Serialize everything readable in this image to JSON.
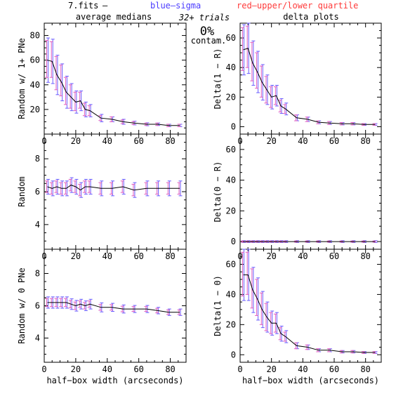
{
  "header": {
    "file": "7.fits",
    "dash": "–",
    "blue_label": "blue–sigma",
    "red_label": "red–upper/lower quartile",
    "blue_color": "#4b3cff",
    "red_color": "#ff3a3a",
    "left_title": "average medians",
    "right_title": "delta plots",
    "trials": "32+ trials",
    "contam_pct": "0%",
    "contam_word": "contam."
  },
  "colors": {
    "line": "#000000",
    "sigma": "#6a5cff",
    "quartile": "#e060c0"
  },
  "chart_data": [
    {
      "type": "line",
      "id": "p1",
      "ylabel": "Random w/ 1+ PNe",
      "xlabel": "",
      "xlim": [
        0,
        90
      ],
      "ylim": [
        0,
        90
      ],
      "xticks": [
        0,
        20,
        40,
        60,
        80
      ],
      "yticks": [
        20,
        40,
        60,
        80
      ],
      "x": [
        2,
        5,
        8,
        11,
        14,
        17,
        20,
        23,
        26,
        29,
        36,
        43,
        50,
        57,
        65,
        72,
        79,
        86
      ],
      "y": [
        60,
        59,
        48,
        42,
        34,
        30,
        26,
        27,
        20,
        19,
        13,
        12,
        10,
        9,
        8,
        8,
        7,
        7
      ],
      "sigma": [
        18,
        18,
        16,
        15,
        13,
        11,
        9,
        8,
        6,
        5,
        3,
        2,
        2,
        1.5,
        1.2,
        1,
        1,
        1
      ],
      "q_low": [
        14,
        13,
        12,
        11,
        10,
        9,
        7,
        6,
        5,
        4,
        2,
        2,
        1.5,
        1.2,
        1,
        1,
        1,
        1
      ],
      "q_high": [
        16,
        16,
        15,
        14,
        12,
        10,
        8,
        7,
        5,
        4,
        2,
        2,
        1.5,
        1.2,
        1,
        1,
        1,
        1
      ]
    },
    {
      "type": "line",
      "id": "p2",
      "ylabel": "Delta(1 − R)",
      "xlabel": "",
      "xlim": [
        0,
        90
      ],
      "ylim": [
        -5,
        70
      ],
      "xticks": [
        0,
        20,
        40,
        60,
        80
      ],
      "yticks": [
        0,
        20,
        40,
        60
      ],
      "x": [
        2,
        5,
        8,
        11,
        14,
        17,
        20,
        23,
        26,
        29,
        36,
        43,
        50,
        57,
        65,
        72,
        79,
        86
      ],
      "y": [
        52,
        53,
        43,
        37,
        30,
        25,
        20,
        21,
        14,
        12,
        6,
        5,
        3,
        2.5,
        2,
        2,
        1.5,
        1.5
      ],
      "sigma": [
        17,
        17,
        15,
        14,
        12,
        10,
        8,
        7,
        5,
        4,
        2,
        1.5,
        1,
        1,
        0.8,
        0.8,
        0.6,
        0.6
      ],
      "q_low": [
        14,
        13,
        12,
        11,
        10,
        9,
        7,
        6,
        4,
        3,
        2,
        1.5,
        1,
        1,
        0.8,
        0.8,
        0.6,
        0.6
      ],
      "q_high": [
        15,
        15,
        14,
        13,
        11,
        9,
        7,
        6,
        4,
        3,
        2,
        1.5,
        1,
        1,
        0.8,
        0.8,
        0.6,
        0.6
      ]
    },
    {
      "type": "line",
      "id": "p3",
      "ylabel": "Random",
      "xlabel": "",
      "xlim": [
        0,
        90
      ],
      "ylim": [
        2.5,
        9.5
      ],
      "xticks": [
        0,
        20,
        40,
        60,
        80
      ],
      "yticks": [
        4,
        6,
        8
      ],
      "x": [
        2,
        5,
        8,
        11,
        14,
        17,
        20,
        23,
        26,
        29,
        36,
        43,
        50,
        57,
        65,
        72,
        79,
        86
      ],
      "y": [
        6.3,
        6.2,
        6.3,
        6.2,
        6.2,
        6.4,
        6.3,
        6.1,
        6.3,
        6.3,
        6.2,
        6.2,
        6.3,
        6.1,
        6.2,
        6.2,
        6.2,
        6.2
      ],
      "sigma": [
        0.45,
        0.45,
        0.45,
        0.45,
        0.45,
        0.45,
        0.45,
        0.45,
        0.45,
        0.45,
        0.45,
        0.45,
        0.45,
        0.45,
        0.45,
        0.45,
        0.45,
        0.45
      ],
      "q_low": [
        0.35,
        0.35,
        0.35,
        0.35,
        0.35,
        0.35,
        0.35,
        0.35,
        0.35,
        0.35,
        0.35,
        0.35,
        0.35,
        0.35,
        0.35,
        0.35,
        0.35,
        0.35
      ],
      "q_high": [
        0.35,
        0.35,
        0.35,
        0.35,
        0.35,
        0.35,
        0.35,
        0.35,
        0.35,
        0.35,
        0.35,
        0.35,
        0.35,
        0.35,
        0.35,
        0.35,
        0.35,
        0.35
      ]
    },
    {
      "type": "line",
      "id": "p4",
      "ylabel": "Delta(0 − R)",
      "xlabel": "",
      "xlim": [
        0,
        90
      ],
      "ylim": [
        -5,
        70
      ],
      "xticks": [
        0,
        20,
        40,
        60,
        80
      ],
      "yticks": [
        0,
        20,
        40,
        60
      ],
      "x": [
        2,
        5,
        8,
        11,
        14,
        17,
        20,
        23,
        26,
        29,
        36,
        43,
        50,
        57,
        65,
        72,
        79,
        86
      ],
      "y": [
        0,
        0,
        0,
        0,
        0,
        0,
        0,
        0,
        0,
        0,
        0,
        0,
        0,
        0,
        0,
        0,
        0,
        0
      ],
      "sigma": [
        0.6,
        0.6,
        0.6,
        0.6,
        0.6,
        0.6,
        0.6,
        0.6,
        0.6,
        0.6,
        0.6,
        0.6,
        0.6,
        0.6,
        0.6,
        0.6,
        0.6,
        0.6
      ],
      "q_low": [
        0.4,
        0.4,
        0.4,
        0.4,
        0.4,
        0.4,
        0.4,
        0.4,
        0.4,
        0.4,
        0.4,
        0.4,
        0.4,
        0.4,
        0.4,
        0.4,
        0.4,
        0.4
      ],
      "q_high": [
        0.4,
        0.4,
        0.4,
        0.4,
        0.4,
        0.4,
        0.4,
        0.4,
        0.4,
        0.4,
        0.4,
        0.4,
        0.4,
        0.4,
        0.4,
        0.4,
        0.4,
        0.4
      ]
    },
    {
      "type": "line",
      "id": "p5",
      "ylabel": "Random w/ 0 PNe",
      "xlabel": "half−box width (arcseconds)",
      "xlim": [
        0,
        90
      ],
      "ylim": [
        2.5,
        9.5
      ],
      "xticks": [
        0,
        20,
        40,
        60,
        80
      ],
      "yticks": [
        4,
        6,
        8
      ],
      "x": [
        2,
        5,
        8,
        11,
        14,
        17,
        20,
        23,
        26,
        29,
        36,
        43,
        50,
        57,
        65,
        72,
        79,
        86
      ],
      "y": [
        6.2,
        6.2,
        6.2,
        6.2,
        6.2,
        6.1,
        6.0,
        6.1,
        6.0,
        6.1,
        5.9,
        5.9,
        5.8,
        5.8,
        5.8,
        5.7,
        5.6,
        5.6
      ],
      "sigma": [
        0.35,
        0.35,
        0.35,
        0.35,
        0.35,
        0.33,
        0.33,
        0.3,
        0.3,
        0.3,
        0.28,
        0.25,
        0.25,
        0.22,
        0.22,
        0.2,
        0.2,
        0.2
      ],
      "q_low": [
        0.25,
        0.25,
        0.25,
        0.25,
        0.25,
        0.23,
        0.23,
        0.2,
        0.2,
        0.2,
        0.18,
        0.17,
        0.17,
        0.15,
        0.15,
        0.14,
        0.14,
        0.14
      ],
      "q_high": [
        0.25,
        0.25,
        0.25,
        0.25,
        0.25,
        0.23,
        0.23,
        0.2,
        0.2,
        0.2,
        0.18,
        0.17,
        0.17,
        0.15,
        0.15,
        0.14,
        0.14,
        0.14
      ]
    },
    {
      "type": "line",
      "id": "p6",
      "ylabel": "Delta(1 − 0)",
      "xlabel": "half−box width (arcseconds)",
      "xlim": [
        0,
        90
      ],
      "ylim": [
        -5,
        70
      ],
      "xticks": [
        0,
        20,
        40,
        60,
        80
      ],
      "yticks": [
        0,
        20,
        40,
        60
      ],
      "x": [
        2,
        5,
        8,
        11,
        14,
        17,
        20,
        23,
        26,
        29,
        36,
        43,
        50,
        57,
        65,
        72,
        79,
        86
      ],
      "y": [
        53,
        53,
        43,
        37,
        30,
        25,
        21,
        21,
        14,
        12,
        6,
        5,
        3,
        3,
        2,
        2,
        1.5,
        1.5
      ],
      "sigma": [
        17,
        17,
        15,
        14,
        12,
        10,
        8,
        7,
        5,
        4,
        2,
        1.5,
        1,
        1,
        0.8,
        0.8,
        0.6,
        0.6
      ],
      "q_low": [
        14,
        13,
        12,
        11,
        10,
        9,
        7,
        6,
        4,
        3,
        2,
        1.5,
        1,
        1,
        0.8,
        0.8,
        0.6,
        0.6
      ],
      "q_high": [
        15,
        15,
        14,
        13,
        11,
        9,
        7,
        6,
        4,
        3,
        2,
        1.5,
        1,
        1,
        0.8,
        0.8,
        0.6,
        0.6
      ]
    }
  ]
}
